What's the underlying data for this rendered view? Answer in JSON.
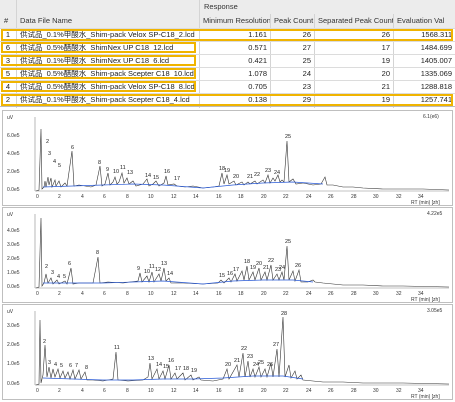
{
  "table": {
    "group_header": "Response",
    "columns": [
      "#",
      "Data File Name",
      "Minimum Resolution",
      "Peak Count",
      "Separated Peak Count",
      "Evaluation Val"
    ],
    "rows": [
      {
        "id": "1",
        "name": "供试品_0.1%甲酸水_Shim-pack Velox SP-C18_2.lcd",
        "min_res": "1.161",
        "peak_count": "26",
        "sep_count": "26",
        "eval": "1568.311"
      },
      {
        "id": "6",
        "name": "供试品_0.5%醋酸水_ShimNex UP C18_12.lcd",
        "min_res": "0.571",
        "peak_count": "27",
        "sep_count": "17",
        "eval": "1484.699"
      },
      {
        "id": "3",
        "name": "供试品_0.1%甲酸水_ShimNex UP C18_6.lcd",
        "min_res": "0.421",
        "peak_count": "25",
        "sep_count": "19",
        "eval": "1405.007"
      },
      {
        "id": "5",
        "name": "供试品_0.5%醋酸水_Shim-pack Scepter C18_10.lcd",
        "min_res": "1.078",
        "peak_count": "24",
        "sep_count": "20",
        "eval": "1335.069"
      },
      {
        "id": "4",
        "name": "供试品_0.5%醋酸水_Shim-pack Velox SP-C18_8.lcd",
        "min_res": "0.705",
        "peak_count": "23",
        "sep_count": "21",
        "eval": "1288.818"
      },
      {
        "id": "2",
        "name": "供试品_0.1%甲酸水_Shim-pack Scepter C18_4.lcd",
        "min_res": "0.138",
        "peak_count": "29",
        "sep_count": "19",
        "eval": "1257.741"
      }
    ]
  },
  "chromatograms": [
    {
      "panel_label": "uV",
      "max_label": "6.1(e6)",
      "y_ticks": [
        "6.0e5",
        "4.0e5",
        "2.0e5",
        "0.0e5"
      ],
      "x_ticks": [
        "0",
        "2",
        "4",
        "6",
        "8",
        "10",
        "12",
        "14",
        "16",
        "18",
        "20",
        "22",
        "24",
        "26",
        "28",
        "30",
        "32",
        "34"
      ],
      "x_unit": "RT (min) [zh]",
      "peak_labels": [
        "2",
        "3",
        "4",
        "5",
        "6",
        "8",
        "9",
        "10",
        "11",
        "13",
        "14",
        "15",
        "16",
        "17",
        "18",
        "19",
        "20",
        "21",
        "22",
        "23",
        "24",
        "25"
      ]
    },
    {
      "panel_label": "uV",
      "max_label": "4.22e5",
      "y_ticks": [
        "4.0e5",
        "3.0e5",
        "2.0e5",
        "1.0e5",
        "0.0e5"
      ],
      "x_ticks": [
        "0",
        "2",
        "4",
        "6",
        "8",
        "10",
        "12",
        "14",
        "16",
        "18",
        "20",
        "22",
        "24",
        "26",
        "28",
        "30",
        "32",
        "34"
      ],
      "x_unit": "RT (min) [zh]",
      "peak_labels": [
        "2",
        "3",
        "4",
        "5",
        "6",
        "8",
        "9",
        "10",
        "11",
        "12",
        "13",
        "14",
        "15",
        "16",
        "17",
        "18",
        "19",
        "20",
        "21",
        "22",
        "23",
        "24",
        "25",
        "26"
      ]
    },
    {
      "panel_label": "uV",
      "max_label": "3.05e5",
      "y_ticks": [
        "3.0e5",
        "2.0e5",
        "1.0e5",
        "0.0e5"
      ],
      "x_ticks": [
        "0",
        "2",
        "4",
        "6",
        "8",
        "10",
        "12",
        "14",
        "16",
        "18",
        "20",
        "22",
        "24",
        "26",
        "28",
        "30",
        "32",
        "34"
      ],
      "x_unit": "RT (min) [zh]",
      "peak_labels": [
        "2",
        "3",
        "4",
        "5",
        "6",
        "7",
        "8",
        "11",
        "13",
        "14",
        "15",
        "16",
        "17",
        "18",
        "19",
        "20",
        "21",
        "22",
        "23",
        "24",
        "25",
        "26",
        "27",
        "28"
      ]
    }
  ],
  "colors": {
    "highlight": "#f0b400",
    "trace": "#333333",
    "baseline": "#2a5bd7",
    "peak_fill": "#e89090"
  }
}
